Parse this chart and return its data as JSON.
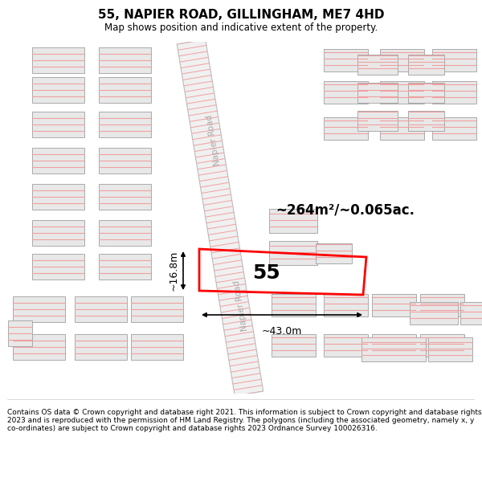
{
  "title": "55, NAPIER ROAD, GILLINGHAM, ME7 4HD",
  "subtitle": "Map shows position and indicative extent of the property.",
  "footer": "Contains OS data © Crown copyright and database right 2021. This information is subject to Crown copyright and database rights 2023 and is reproduced with the permission of HM Land Registry. The polygons (including the associated geometry, namely x, y co-ordinates) are subject to Crown copyright and database rights 2023 Ordnance Survey 100026316.",
  "area_label": "~264m²/~0.065ac.",
  "width_label": "~43.0m",
  "height_label": "~16.8m",
  "plot_number": "55",
  "road_name_upper": "Napier Road",
  "road_name_lower": "Napier Road",
  "bg_color": "#ffffff",
  "map_bg": "#ffffff",
  "plot_color": "#ff0000",
  "building_fill": "#e8e8e8",
  "building_stroke": "#aaaaaa",
  "stripe_color": "#f0a0a0",
  "road_fill": "#ffffff",
  "road_edge": "#bbbbbb"
}
